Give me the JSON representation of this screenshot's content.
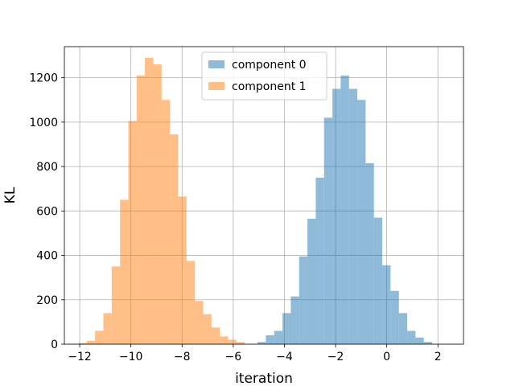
{
  "chart_data": {
    "type": "bar",
    "title": "",
    "xlabel": "iteration",
    "ylabel": "KL",
    "xlim": [
      -12.6,
      3.0
    ],
    "ylim": [
      0,
      1340
    ],
    "xticks": [
      -12,
      -10,
      -8,
      -6,
      -4,
      -2,
      0,
      2
    ],
    "xtick_labels": [
      "−12",
      "−10",
      "−8",
      "−6",
      "−4",
      "−2",
      "0",
      "2"
    ],
    "yticks": [
      0,
      200,
      400,
      600,
      800,
      1000,
      1200
    ],
    "ytick_labels": [
      "0",
      "200",
      "400",
      "600",
      "800",
      "1000",
      "1200"
    ],
    "grid": true,
    "legend_position": "upper-center",
    "series": [
      {
        "name": "component 0",
        "color": "#1f77b4",
        "opacity": 0.5,
        "bin_start": -5.05,
        "bin_width": 0.325,
        "values": [
          10,
          40,
          60,
          140,
          215,
          395,
          565,
          750,
          1020,
          1150,
          1210,
          1150,
          1100,
          815,
          570,
          355,
          240,
          140,
          60,
          30,
          10
        ]
      },
      {
        "name": "component 1",
        "color": "#ff7f0e",
        "opacity": 0.5,
        "bin_start": -12.05,
        "bin_width": 0.325,
        "values": [
          5,
          15,
          60,
          140,
          350,
          650,
          1005,
          1210,
          1290,
          1260,
          1100,
          945,
          665,
          375,
          195,
          135,
          75,
          35,
          20,
          10
        ]
      }
    ],
    "legend": [
      "component 0",
      "component 1"
    ]
  }
}
